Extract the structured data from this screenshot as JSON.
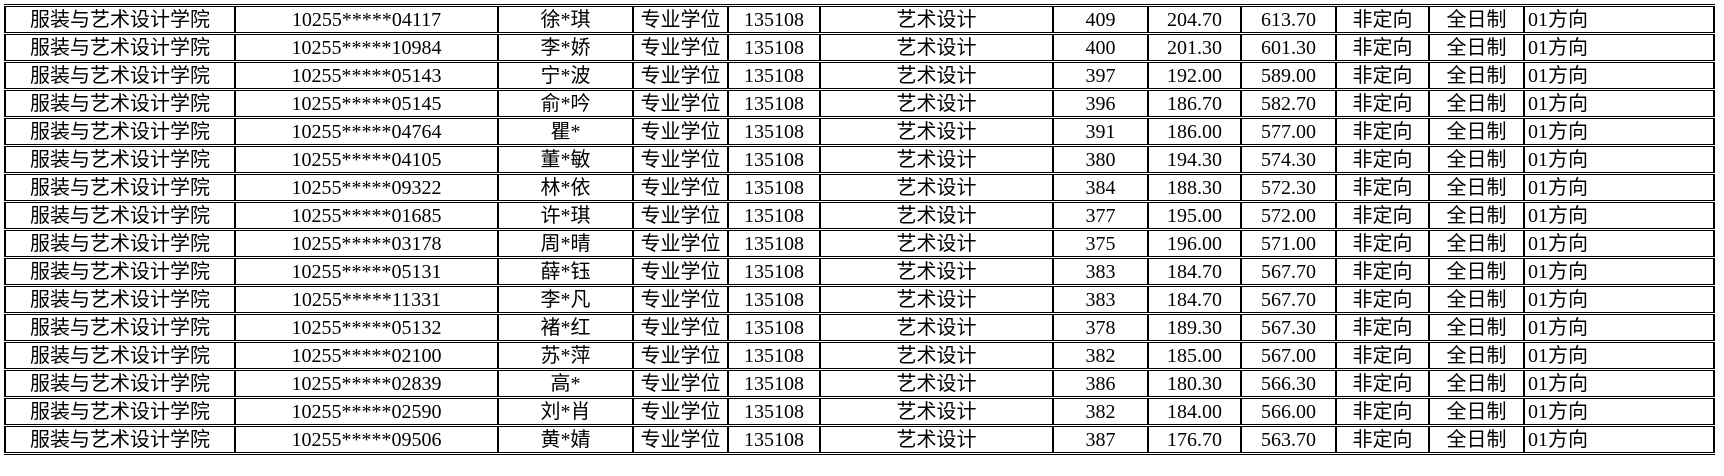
{
  "table": {
    "column_keys": [
      "college",
      "candidate-id",
      "candidate-name",
      "degree-type",
      "major-code",
      "major-name",
      "initial-score",
      "retest-score",
      "total-score",
      "enrollment-orientation",
      "study-mode",
      "research-direction"
    ],
    "rows": [
      [
        "服装与艺术设计学院",
        "10255*****04117",
        "徐*琪",
        "专业学位",
        "135108",
        "艺术设计",
        "409",
        "204.70",
        "613.70",
        "非定向",
        "全日制",
        "01方向"
      ],
      [
        "服装与艺术设计学院",
        "10255*****10984",
        "李*娇",
        "专业学位",
        "135108",
        "艺术设计",
        "400",
        "201.30",
        "601.30",
        "非定向",
        "全日制",
        "01方向"
      ],
      [
        "服装与艺术设计学院",
        "10255*****05143",
        "宁*波",
        "专业学位",
        "135108",
        "艺术设计",
        "397",
        "192.00",
        "589.00",
        "非定向",
        "全日制",
        "01方向"
      ],
      [
        "服装与艺术设计学院",
        "10255*****05145",
        "俞*吟",
        "专业学位",
        "135108",
        "艺术设计",
        "396",
        "186.70",
        "582.70",
        "非定向",
        "全日制",
        "01方向"
      ],
      [
        "服装与艺术设计学院",
        "10255*****04764",
        "瞿*",
        "专业学位",
        "135108",
        "艺术设计",
        "391",
        "186.00",
        "577.00",
        "非定向",
        "全日制",
        "01方向"
      ],
      [
        "服装与艺术设计学院",
        "10255*****04105",
        "董*敏",
        "专业学位",
        "135108",
        "艺术设计",
        "380",
        "194.30",
        "574.30",
        "非定向",
        "全日制",
        "01方向"
      ],
      [
        "服装与艺术设计学院",
        "10255*****09322",
        "林*依",
        "专业学位",
        "135108",
        "艺术设计",
        "384",
        "188.30",
        "572.30",
        "非定向",
        "全日制",
        "01方向"
      ],
      [
        "服装与艺术设计学院",
        "10255*****01685",
        "许*琪",
        "专业学位",
        "135108",
        "艺术设计",
        "377",
        "195.00",
        "572.00",
        "非定向",
        "全日制",
        "01方向"
      ],
      [
        "服装与艺术设计学院",
        "10255*****03178",
        "周*晴",
        "专业学位",
        "135108",
        "艺术设计",
        "375",
        "196.00",
        "571.00",
        "非定向",
        "全日制",
        "01方向"
      ],
      [
        "服装与艺术设计学院",
        "10255*****05131",
        "薛*钰",
        "专业学位",
        "135108",
        "艺术设计",
        "383",
        "184.70",
        "567.70",
        "非定向",
        "全日制",
        "01方向"
      ],
      [
        "服装与艺术设计学院",
        "10255*****11331",
        "李*凡",
        "专业学位",
        "135108",
        "艺术设计",
        "383",
        "184.70",
        "567.70",
        "非定向",
        "全日制",
        "01方向"
      ],
      [
        "服装与艺术设计学院",
        "10255*****05132",
        "褚*红",
        "专业学位",
        "135108",
        "艺术设计",
        "378",
        "189.30",
        "567.30",
        "非定向",
        "全日制",
        "01方向"
      ],
      [
        "服装与艺术设计学院",
        "10255*****02100",
        "苏*萍",
        "专业学位",
        "135108",
        "艺术设计",
        "382",
        "185.00",
        "567.00",
        "非定向",
        "全日制",
        "01方向"
      ],
      [
        "服装与艺术设计学院",
        "10255*****02839",
        "高*",
        "专业学位",
        "135108",
        "艺术设计",
        "386",
        "180.30",
        "566.30",
        "非定向",
        "全日制",
        "01方向"
      ],
      [
        "服装与艺术设计学院",
        "10255*****02590",
        "刘*肖",
        "专业学位",
        "135108",
        "艺术设计",
        "382",
        "184.00",
        "566.00",
        "非定向",
        "全日制",
        "01方向"
      ],
      [
        "服装与艺术设计学院",
        "10255*****09506",
        "黄*婧",
        "专业学位",
        "135108",
        "艺术设计",
        "387",
        "176.70",
        "563.70",
        "非定向",
        "全日制",
        "01方向"
      ]
    ]
  }
}
